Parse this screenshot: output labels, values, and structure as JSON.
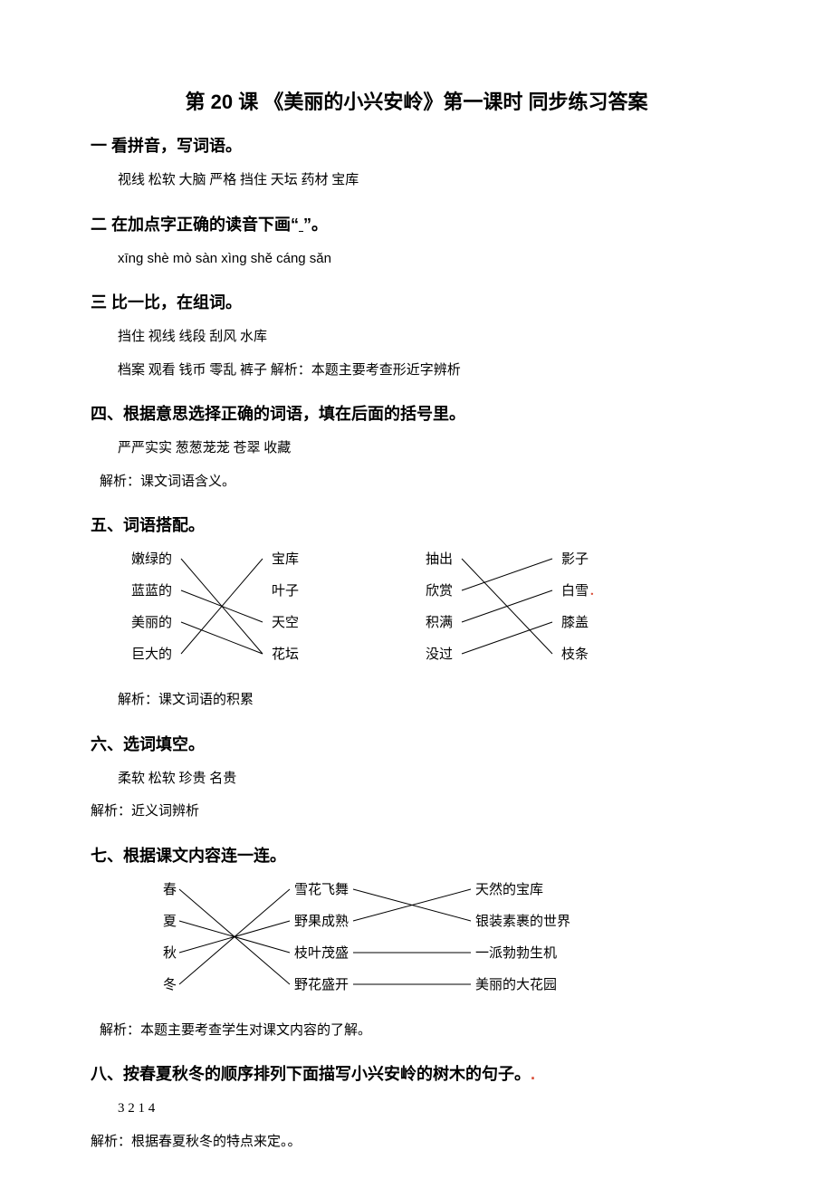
{
  "title": "第 20 课  《美丽的小兴安岭》第一课时  同步练习答案",
  "sections": {
    "s1": {
      "heading": "一 看拼音，写词语。",
      "line1": "视线   松软  大脑  严格   挡住  天坛  药材  宝库"
    },
    "s2": {
      "heading_pre": "二  在加点字正确的读音下画“",
      "heading_uline": "        ",
      "heading_post": "”。",
      "line1": "xīng  shè  mò   sàn   xìng   shě  cáng  sǎn"
    },
    "s3": {
      "heading": "三 比一比，在组词。",
      "line1": "挡住   视线  线段  刮风  水库",
      "line2": "档案  观看  钱币  零乱  裤子  解析：本题主要考查形近字辨析"
    },
    "s4": {
      "heading": "四、根据意思选择正确的词语，填在后面的括号里。",
      "line1": "严严实实     葱葱茏茏  苍翠   收藏",
      "line2": "解析：课文词语含义。"
    },
    "s5": {
      "heading": "五、词语搭配。",
      "left_col1": [
        "嫩绿的",
        "蓝蓝的",
        "美丽的",
        "巨大的"
      ],
      "left_col2": [
        "宝库",
        "叶子",
        "天空",
        "花坛"
      ],
      "right_col1": [
        "抽出",
        "欣赏",
        "积满",
        "没过"
      ],
      "right_col2": [
        "影子",
        "白雪",
        "膝盖",
        "枝条"
      ],
      "note": "解析：课文词语的积累",
      "colors": {
        "line": "#000000",
        "text": "#000000",
        "red": "#d94f3a"
      },
      "font_size": 15,
      "row_gap": 35,
      "left_edges": [
        {
          "from": 0,
          "to": 3
        },
        {
          "from": 1,
          "to": 2
        },
        {
          "from": 2,
          "to": 3
        },
        {
          "from": 3,
          "to": 0
        }
      ],
      "right_edges": [
        {
          "from": 0,
          "to": 3
        },
        {
          "from": 1,
          "to": 0
        },
        {
          "from": 2,
          "to": 1
        },
        {
          "from": 3,
          "to": 2
        }
      ]
    },
    "s6": {
      "heading": "六、选词填空。",
      "line1": "柔软  松软   珍贵     名贵",
      "line2": "解析：近义词辨析"
    },
    "s7": {
      "heading": "七、根据课文内容连一连。",
      "col1": [
        "春",
        "夏",
        "秋",
        "冬"
      ],
      "col2": [
        "雪花飞舞",
        "野果成熟",
        "枝叶茂盛",
        "野花盛开"
      ],
      "col3": [
        "天然的宝库",
        "银装素裹的世界",
        "一派勃勃生机",
        "美丽的大花园"
      ],
      "row_gap": 35,
      "edges12": [
        {
          "from": 0,
          "to": 3
        },
        {
          "from": 1,
          "to": 2
        },
        {
          "from": 2,
          "to": 1
        },
        {
          "from": 3,
          "to": 0
        }
      ],
      "edges23": [
        {
          "from": 0,
          "to": 1
        },
        {
          "from": 1,
          "to": 0
        },
        {
          "from": 2,
          "to": 2
        },
        {
          "from": 3,
          "to": 3
        }
      ],
      "note": "解析：本题主要考查学生对课文内容的了解。"
    },
    "s8": {
      "heading": "八、按春夏秋冬的顺序排列下面描写小兴安岭的树木的句子。",
      "line1": "3   2   1   4",
      "line2": "解析：根据春夏秋冬的特点来定。。"
    }
  }
}
